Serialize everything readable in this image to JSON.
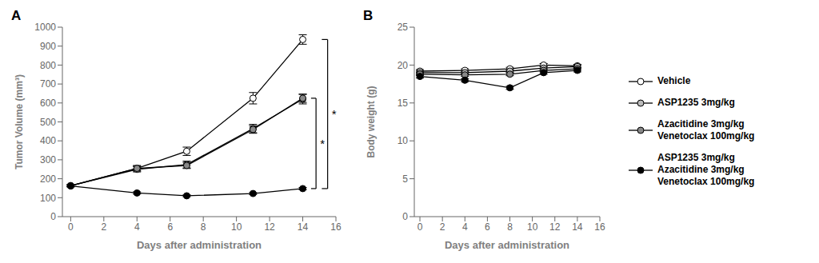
{
  "chart_data": [
    {
      "type": "line",
      "title": "A",
      "xlabel": "Days after administration",
      "ylabel": "Tumor Volume (mm³)",
      "x": [
        0,
        4,
        7,
        11,
        14
      ],
      "xlim": [
        -0.5,
        16
      ],
      "xticks": [
        0,
        2,
        4,
        6,
        8,
        10,
        12,
        14,
        16
      ],
      "ylim": [
        0,
        1000
      ],
      "yticks": [
        0,
        100,
        200,
        300,
        400,
        500,
        600,
        700,
        800,
        900,
        1000
      ],
      "grid": false,
      "marker": "circle",
      "series": [
        {
          "color": "white",
          "values": [
            163,
            255,
            345,
            625,
            935
          ],
          "errors": [
            5,
            15,
            22,
            30,
            25
          ]
        },
        {
          "color": "#bbbbbb",
          "values": [
            163,
            250,
            275,
            465,
            620
          ],
          "errors": [
            5,
            14,
            18,
            22,
            25
          ]
        },
        {
          "color": "#888888",
          "values": [
            163,
            255,
            270,
            460,
            625
          ],
          "errors": [
            5,
            12,
            16,
            20,
            22
          ]
        },
        {
          "color": "black",
          "values": [
            162,
            125,
            110,
            122,
            148
          ],
          "errors": [
            5,
            6,
            5,
            5,
            6
          ]
        }
      ],
      "annotations": [
        {
          "text": "*",
          "y_range": [
            148,
            625
          ]
        },
        {
          "text": "*",
          "y_range": [
            148,
            935
          ]
        }
      ]
    },
    {
      "type": "line",
      "title": "B",
      "xlabel": "Days after administration",
      "ylabel": "Body weight (g)",
      "x": [
        0,
        4,
        8,
        11,
        14
      ],
      "xlim": [
        -0.5,
        16
      ],
      "xticks": [
        0,
        2,
        4,
        6,
        8,
        10,
        12,
        14,
        16
      ],
      "ylim": [
        0,
        25
      ],
      "yticks": [
        0,
        5,
        10,
        15,
        20,
        25
      ],
      "grid": false,
      "marker": "circle",
      "legend": "right",
      "series": [
        {
          "name": "Vehicle",
          "color": "white",
          "values": [
            19.2,
            19.3,
            19.5,
            20.0,
            19.9
          ],
          "errors": [
            0.2,
            0.2,
            0.2,
            0.2,
            0.2
          ]
        },
        {
          "name": "ASP1235 3mg/kg",
          "color": "#bbbbbb",
          "values": [
            19.0,
            19.0,
            19.2,
            19.6,
            19.8
          ],
          "errors": [
            0.2,
            0.2,
            0.2,
            0.2,
            0.2
          ]
        },
        {
          "name": "Azacitidine 3mg/kg\nVenetoclax 100mg/kg",
          "color": "#888888",
          "values": [
            18.8,
            18.7,
            18.8,
            19.3,
            19.5
          ],
          "errors": [
            0.2,
            0.2,
            0.2,
            0.2,
            0.2
          ]
        },
        {
          "name": "ASP1235 3mg/kg\nAzacitidine 3mg/kg\nVenetoclax 100mg/kg",
          "color": "black",
          "values": [
            18.5,
            18.0,
            17.0,
            19.0,
            19.3
          ],
          "errors": [
            0.2,
            0.2,
            0.2,
            0.2,
            0.2
          ]
        }
      ]
    }
  ]
}
